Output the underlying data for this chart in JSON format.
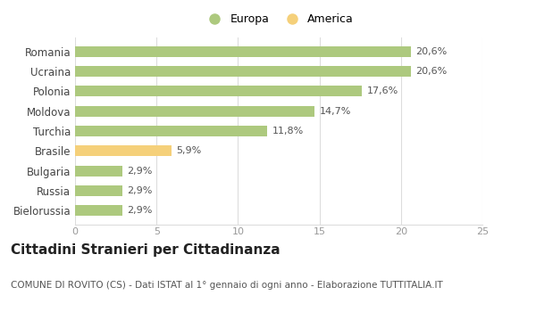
{
  "categories": [
    "Bielorussia",
    "Russia",
    "Bulgaria",
    "Brasile",
    "Turchia",
    "Moldova",
    "Polonia",
    "Ucraina",
    "Romania"
  ],
  "values": [
    2.9,
    2.9,
    2.9,
    5.9,
    11.8,
    14.7,
    17.6,
    20.6,
    20.6
  ],
  "labels": [
    "2,9%",
    "2,9%",
    "2,9%",
    "5,9%",
    "11,8%",
    "14,7%",
    "17,6%",
    "20,6%",
    "20,6%"
  ],
  "colors": [
    "#adc97e",
    "#adc97e",
    "#adc97e",
    "#f5d07a",
    "#adc97e",
    "#adc97e",
    "#adc97e",
    "#adc97e",
    "#adc97e"
  ],
  "europa_color": "#adc97e",
  "america_color": "#f5d07a",
  "title": "Cittadini Stranieri per Cittadinanza",
  "subtitle": "COMUNE DI ROVITO (CS) - Dati ISTAT al 1° gennaio di ogni anno - Elaborazione TUTTITALIA.IT",
  "xlim": [
    0,
    25
  ],
  "xticks": [
    0,
    5,
    10,
    15,
    20,
    25
  ],
  "legend_europa": "Europa",
  "legend_america": "America",
  "bar_height": 0.55,
  "grid_color": "#dddddd",
  "bg_color": "#ffffff",
  "label_fontsize": 8,
  "ytick_fontsize": 8.5,
  "xtick_fontsize": 8,
  "title_fontsize": 11,
  "subtitle_fontsize": 7.5
}
